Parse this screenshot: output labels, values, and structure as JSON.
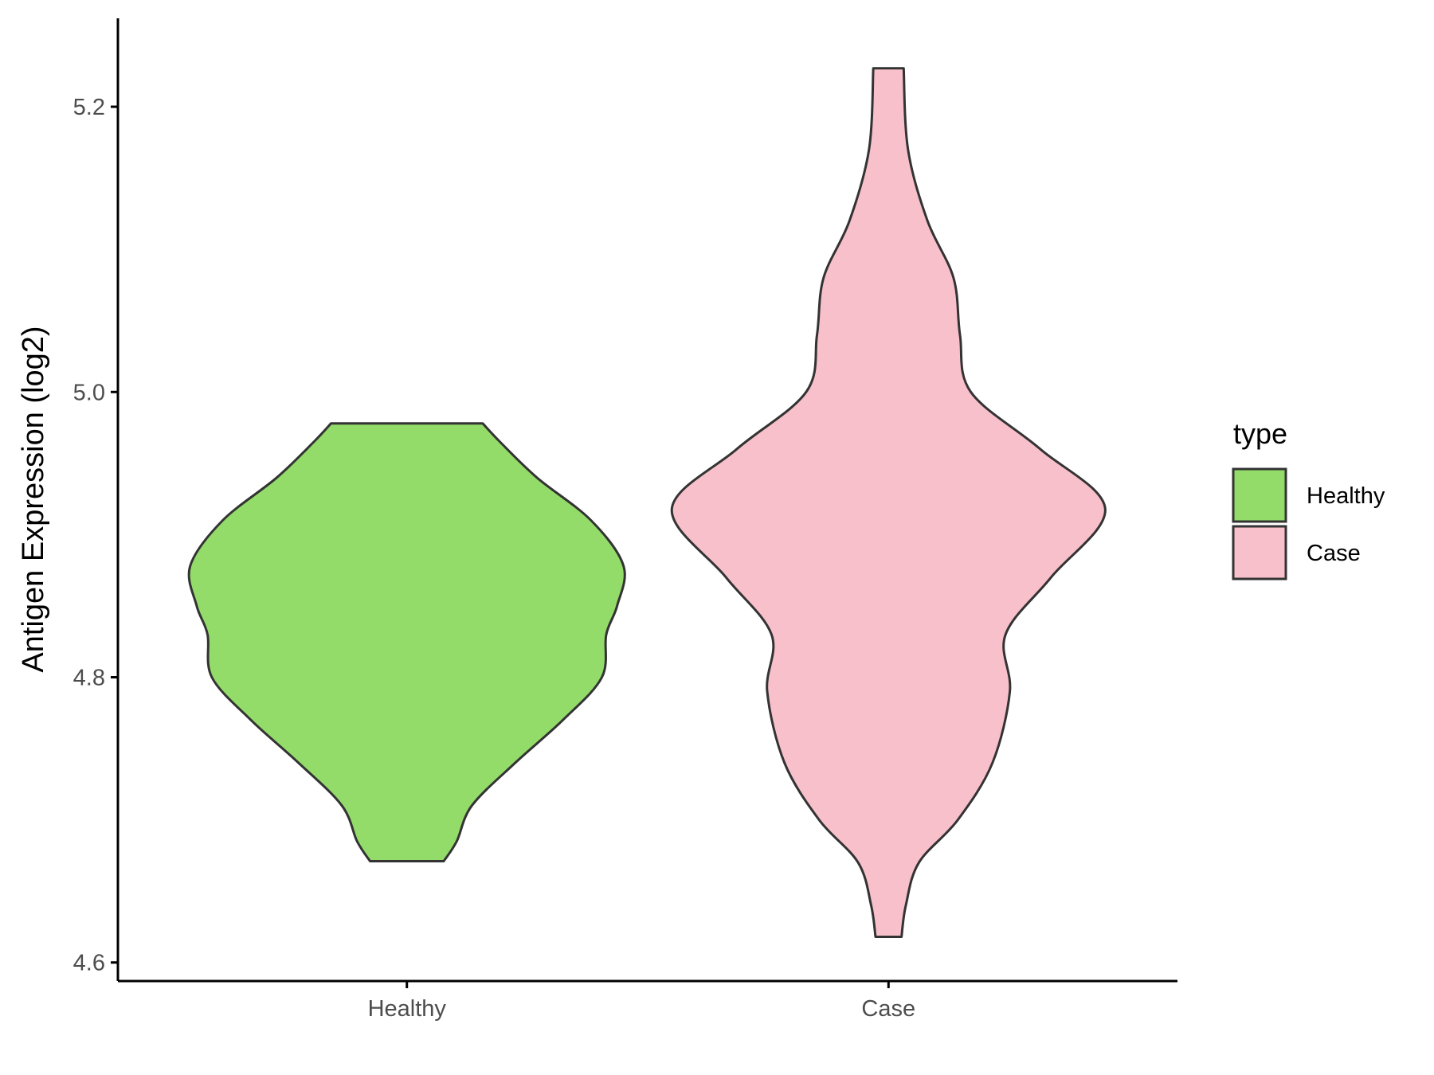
{
  "chart_data": {
    "type": "violin",
    "title": "",
    "xlabel": "",
    "ylabel": "Antigen Expression (log2)",
    "ylim": [
      4.587,
      5.262
    ],
    "yticks": [
      4.6,
      4.8,
      5.0,
      5.2
    ],
    "ytick_labels": [
      "4.6",
      "4.8",
      "5.0",
      "5.2"
    ],
    "categories": [
      "Healthy",
      "Case"
    ],
    "grid": false,
    "legend": {
      "title": "type",
      "position": "right",
      "entries": [
        "Healthy",
        "Case"
      ]
    },
    "series": [
      {
        "name": "Healthy",
        "color": "#93dc6a",
        "min": 4.671,
        "max": 4.978,
        "density_profile": [
          [
            4.671,
            0.17
          ],
          [
            4.685,
            0.23
          ],
          [
            4.71,
            0.3
          ],
          [
            4.74,
            0.5
          ],
          [
            4.77,
            0.72
          ],
          [
            4.8,
            0.9
          ],
          [
            4.83,
            0.92
          ],
          [
            4.85,
            0.97
          ],
          [
            4.878,
            1.0
          ],
          [
            4.91,
            0.85
          ],
          [
            4.94,
            0.6
          ],
          [
            4.965,
            0.43
          ],
          [
            4.978,
            0.35
          ]
        ]
      },
      {
        "name": "Case",
        "color": "#f8c0cb",
        "min": 4.618,
        "max": 5.227,
        "density_profile": [
          [
            4.618,
            0.06
          ],
          [
            4.64,
            0.08
          ],
          [
            4.67,
            0.14
          ],
          [
            4.7,
            0.32
          ],
          [
            4.74,
            0.48
          ],
          [
            4.79,
            0.56
          ],
          [
            4.83,
            0.54
          ],
          [
            4.87,
            0.75
          ],
          [
            4.918,
            1.0
          ],
          [
            4.96,
            0.7
          ],
          [
            5.0,
            0.38
          ],
          [
            5.04,
            0.33
          ],
          [
            5.08,
            0.3
          ],
          [
            5.12,
            0.18
          ],
          [
            5.17,
            0.09
          ],
          [
            5.227,
            0.07
          ]
        ]
      }
    ]
  }
}
